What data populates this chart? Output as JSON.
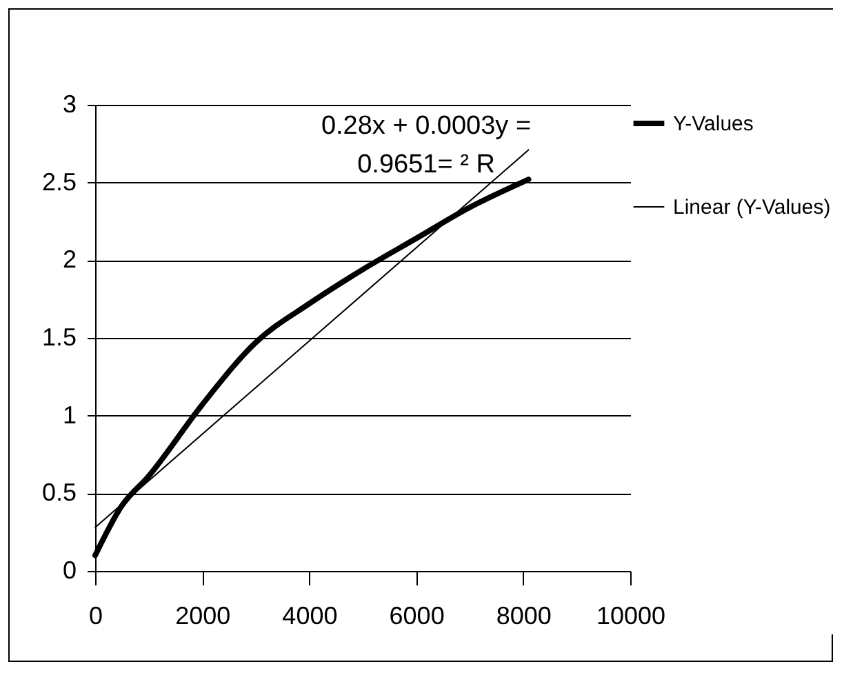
{
  "chart_data": {
    "type": "line",
    "x": [
      0,
      500,
      1000,
      2000,
      3000,
      4000,
      5000,
      6000,
      7000,
      8100
    ],
    "series": [
      {
        "name": "Y-Values",
        "color": "#000000",
        "values": [
          0.1,
          0.42,
          0.61,
          1.07,
          1.47,
          1.72,
          1.94,
          2.14,
          2.34,
          2.52
        ]
      },
      {
        "name": "Linear (Y-Values)",
        "color": "#000000",
        "type": "line",
        "x": [
          0,
          8100
        ],
        "values": [
          0.28,
          2.71
        ]
      }
    ],
    "annotations": [
      "0.28x + 0.0003y =",
      "0.9651= ² R"
    ],
    "xlim": [
      0,
      10000
    ],
    "xticks": [
      0,
      2000,
      4000,
      6000,
      8000,
      10000
    ],
    "ylim": [
      0,
      3
    ],
    "yticks": [
      0,
      0.5,
      1,
      1.5,
      2,
      2.5,
      3
    ],
    "grid": "y",
    "legend": "right",
    "marker": "none",
    "line_style": "solid"
  }
}
